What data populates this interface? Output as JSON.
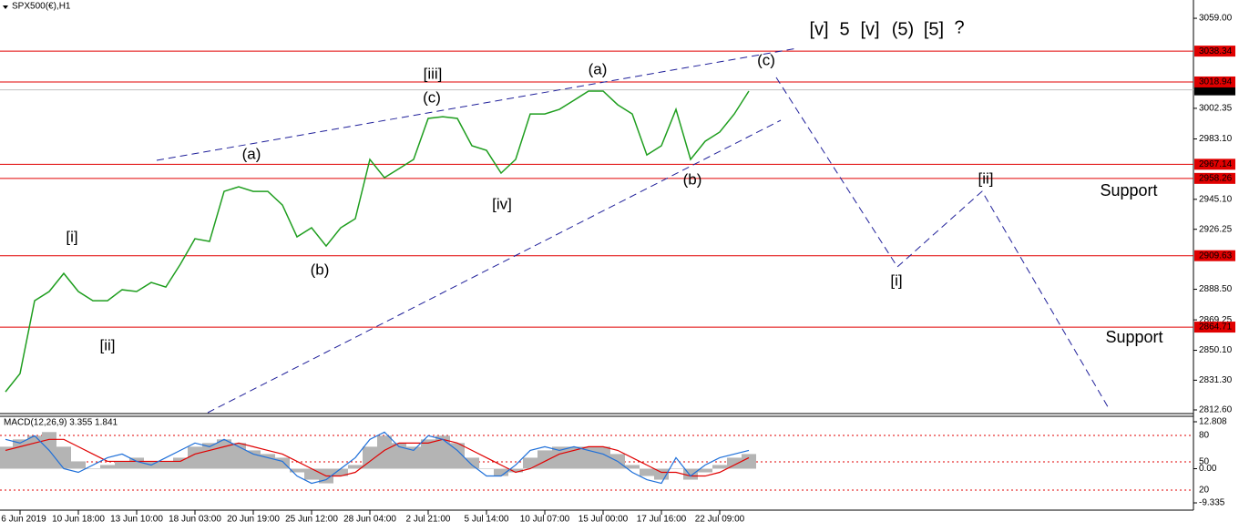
{
  "chart_data": [
    {
      "type": "line",
      "title": "SPX500(€),H1",
      "categories": [
        null,
        "6 Jun 2019",
        null,
        null,
        null,
        "10 Jun 18:00",
        null,
        null,
        null,
        "13 Jun 10:00",
        null,
        null,
        null,
        "18 Jun 03:00",
        null,
        null,
        null,
        "20 Jun 19:00",
        null,
        null,
        null,
        "25 Jun 12:00",
        null,
        null,
        null,
        "28 Jun 04:00",
        null,
        null,
        null,
        "2 Jul 21:00",
        null,
        null,
        null,
        "5 Jul 14:00",
        null,
        null,
        null,
        "10 Jul 07:00",
        null,
        null,
        null,
        "15 Jul 00:00",
        null,
        null,
        null,
        "17 Jul 16:00",
        null,
        null,
        null,
        "22 Jul 09:00",
        null,
        null
      ],
      "values": [
        2824.0,
        2835.5,
        2881.3,
        2887.1,
        2898.5,
        2887.1,
        2881.3,
        2881.3,
        2888.2,
        2887.1,
        2892.8,
        2889.9,
        2904.3,
        2920.3,
        2918.6,
        2950.1,
        2953.0,
        2950.1,
        2950.1,
        2941.5,
        2921.5,
        2927.2,
        2915.7,
        2927.2,
        2932.9,
        2970.2,
        2958.7,
        2964.4,
        2970.2,
        2996.0,
        2997.1,
        2996.0,
        2978.8,
        2975.9,
        2961.6,
        2970.2,
        2998.8,
        2998.8,
        3001.7,
        3007.4,
        3013.2,
        3013.2,
        3004.6,
        2998.8,
        2973.0,
        2978.8,
        3001.7,
        2970.2,
        2981.6,
        2987.4,
        2998.8,
        3013.2
      ],
      "color": "#1f9e1f",
      "ylim": [
        2810.3,
        3070.5
      ],
      "yticks": [
        {
          "value": 3059,
          "label": "3059.00"
        },
        {
          "value": 3002.35,
          "label": "3002.35"
        },
        {
          "value": 2983.1,
          "label": "2983.10"
        },
        {
          "value": 2945.1,
          "label": "2945.10"
        },
        {
          "value": 2926.25,
          "label": "2926.25"
        },
        {
          "value": 2888.5,
          "label": "2888.50"
        },
        {
          "value": 2869.25,
          "label": "2869.25"
        },
        {
          "value": 2850.1,
          "label": "2850.10"
        },
        {
          "value": 2831.3,
          "label": "2831.30"
        },
        {
          "value": 2812.6,
          "label": "2812.60"
        }
      ],
      "levels": [
        3038.34,
        3018.94,
        2967.14,
        2958.26,
        2909.63,
        2864.71
      ],
      "level_color": "#e00000",
      "current_price": 3013.97,
      "annotations": [
        {
          "text": "[v]",
          "color": "#1a8a1a"
        },
        {
          "text": "5",
          "color": "#10108a"
        },
        {
          "text": "[v]",
          "color": "#1a8a1a"
        },
        {
          "text": "(5)",
          "color": "#e00000"
        },
        {
          "text": "[5]",
          "color": "#000000"
        },
        {
          "text": "?",
          "color": "#000000"
        },
        {
          "text": "[iii]",
          "color": "#1a8a1a"
        },
        {
          "text": "(a)",
          "color": "#4a4a4a"
        },
        {
          "text": "(c)",
          "color": "#4a4a4a"
        },
        {
          "text": "(c)",
          "color": "#4a4a4a"
        },
        {
          "text": "(a)",
          "color": "#4a4a4a"
        },
        {
          "text": "[i]",
          "color": "#1a8a1a"
        },
        {
          "text": "[ii]",
          "color": "#1a8a1a"
        },
        {
          "text": "(b)",
          "color": "#4a4a4a"
        },
        {
          "text": "[iv]",
          "color": "#1a8a1a"
        },
        {
          "text": "(b)",
          "color": "#4a4a4a"
        },
        {
          "text": "[ii]",
          "color": "#1a8a1a"
        },
        {
          "text": "[i]",
          "color": "#1a8a1a"
        },
        {
          "text": "Support",
          "color": "#e00000"
        },
        {
          "text": "Support",
          "color": "#e00000"
        }
      ]
    },
    {
      "type": "macd",
      "title": "MACD(12,26,9) 3.355 1.841",
      "series": [
        {
          "color": "#b4b4b4",
          "values": [
            6,
            8,
            9,
            10,
            6,
            2,
            0,
            1,
            2,
            3,
            2,
            2,
            3,
            6,
            7,
            8,
            7,
            5,
            4,
            3,
            -1,
            -3,
            -4,
            -2,
            1,
            6,
            9,
            7,
            6,
            8,
            9,
            7,
            3,
            0,
            -2,
            -1,
            3,
            5,
            6,
            6,
            6,
            6,
            4,
            1,
            -2,
            -3,
            0,
            -3,
            -1,
            1,
            3,
            4
          ]
        },
        {
          "color": "#e00000",
          "values": [
            5,
            6,
            7,
            8,
            8,
            6,
            4,
            2,
            2,
            2,
            2,
            2,
            2,
            4,
            5,
            6,
            7,
            6,
            5,
            4,
            2,
            0,
            -2,
            -2,
            -1,
            2,
            5,
            7,
            7,
            7,
            8,
            7,
            5,
            3,
            1,
            -1,
            0,
            2,
            4,
            5,
            6,
            6,
            5,
            3,
            1,
            -1,
            -1,
            -2,
            -2,
            -1,
            1,
            3
          ]
        },
        {
          "color": "#1e6fd9",
          "values": [
            8,
            7,
            9,
            5,
            0,
            -1,
            1,
            3,
            4,
            2,
            1,
            3,
            5,
            7,
            6,
            8,
            6,
            4,
            3,
            2,
            -2,
            -4,
            -3,
            0,
            3,
            8,
            10,
            6,
            5,
            9,
            8,
            5,
            1,
            -2,
            -2,
            1,
            5,
            6,
            5,
            6,
            5,
            4,
            2,
            -1,
            -3,
            -4,
            3,
            -2,
            1,
            3,
            4,
            5
          ]
        }
      ],
      "ylim": [
        -11.32,
        14.8
      ],
      "yticks": [
        {
          "value": 12.808,
          "label": "12.808"
        },
        {
          "value": 0,
          "label": "0.00"
        },
        {
          "value": -9.335,
          "label": "-9.335"
        }
      ],
      "level_labels": [
        "80",
        "50",
        "20"
      ]
    }
  ]
}
